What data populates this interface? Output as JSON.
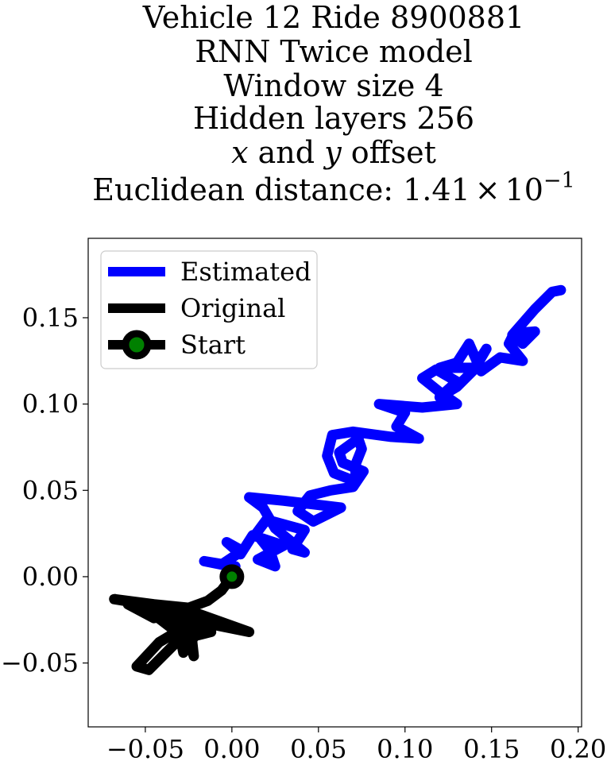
{
  "chart_data": {
    "type": "line",
    "title_lines": [
      "Vehicle 12 Ride 8900881",
      "RNN Twice model",
      "Window size 4",
      "Hidden layers 256"
    ],
    "subtitle_offset": {
      "x_var": "x",
      "and_text": " and ",
      "y_var": "y",
      "offset_text": " offset"
    },
    "distance_line": {
      "prefix": "Euclidean distance: ",
      "mantissa": "1.41",
      "times": "×",
      "base": "10",
      "exponent": "−1"
    },
    "xlim": [
      -0.083,
      0.202
    ],
    "ylim": [
      -0.087,
      0.196
    ],
    "xticks": [
      -0.05,
      0.0,
      0.05,
      0.1,
      0.15,
      0.2
    ],
    "xtick_labels": [
      "−0.05",
      "0.00",
      "0.05",
      "0.10",
      "0.15",
      "0.20"
    ],
    "yticks": [
      -0.05,
      0.0,
      0.05,
      0.1,
      0.15
    ],
    "ytick_labels": [
      "−0.05",
      "0.00",
      "0.05",
      "0.10",
      "0.15"
    ],
    "legend": {
      "position": "upper-left",
      "entries": [
        "Estimated",
        "Original",
        "Start"
      ]
    },
    "series": [
      {
        "name": "Estimated",
        "color": "#0000ff",
        "points": [
          [
            0,
            0
          ],
          [
            0.002,
            0.006
          ],
          [
            -0.016,
            0.009
          ],
          [
            -0.006,
            0.007
          ],
          [
            0.006,
            0.015
          ],
          [
            -0.003,
            0.02
          ],
          [
            0.005,
            0.013
          ],
          [
            0.012,
            0.024
          ],
          [
            0.03,
            0.018
          ],
          [
            0.015,
            0.01
          ],
          [
            0.025,
            0.006
          ],
          [
            0.022,
            0.015
          ],
          [
            0.014,
            0.025
          ],
          [
            0.02,
            0.033
          ],
          [
            0.042,
            0.027
          ],
          [
            0.035,
            0.016
          ],
          [
            0.042,
            0.014
          ],
          [
            0.025,
            0.028
          ],
          [
            0.018,
            0.04
          ],
          [
            0.01,
            0.046
          ],
          [
            0.03,
            0.044
          ],
          [
            0.063,
            0.04
          ],
          [
            0.047,
            0.032
          ],
          [
            0.038,
            0.038
          ],
          [
            0.045,
            0.047
          ],
          [
            0.057,
            0.05
          ],
          [
            0.07,
            0.052
          ],
          [
            0.076,
            0.061
          ],
          [
            0.064,
            0.066
          ],
          [
            0.062,
            0.072
          ],
          [
            0.073,
            0.08
          ],
          [
            0.075,
            0.074
          ],
          [
            0.071,
            0.064
          ],
          [
            0.072,
            0.055
          ],
          [
            0.059,
            0.06
          ],
          [
            0.055,
            0.07
          ],
          [
            0.058,
            0.082
          ],
          [
            0.07,
            0.084
          ],
          [
            0.092,
            0.081
          ],
          [
            0.108,
            0.08
          ],
          [
            0.095,
            0.087
          ],
          [
            0.1,
            0.095
          ],
          [
            0.085,
            0.1
          ],
          [
            0.11,
            0.098
          ],
          [
            0.13,
            0.1
          ],
          [
            0.12,
            0.107
          ],
          [
            0.11,
            0.115
          ],
          [
            0.118,
            0.12
          ],
          [
            0.13,
            0.113
          ],
          [
            0.12,
            0.104
          ],
          [
            0.13,
            0.11
          ],
          [
            0.14,
            0.12
          ],
          [
            0.147,
            0.132
          ],
          [
            0.14,
            0.121
          ],
          [
            0.12,
            0.121
          ],
          [
            0.13,
            0.124
          ],
          [
            0.137,
            0.135
          ],
          [
            0.144,
            0.119
          ],
          [
            0.155,
            0.127
          ],
          [
            0.168,
            0.125
          ],
          [
            0.16,
            0.135
          ],
          [
            0.163,
            0.141
          ],
          [
            0.175,
            0.142
          ],
          [
            0.168,
            0.135
          ],
          [
            0.162,
            0.14
          ],
          [
            0.175,
            0.155
          ],
          [
            0.185,
            0.165
          ],
          [
            0.19,
            0.166
          ]
        ]
      },
      {
        "name": "Original",
        "color": "#000000",
        "points": [
          [
            0,
            0
          ],
          [
            -0.006,
            -0.008
          ],
          [
            -0.014,
            -0.014
          ],
          [
            -0.025,
            -0.018
          ],
          [
            -0.045,
            -0.016
          ],
          [
            -0.068,
            -0.013
          ],
          [
            -0.05,
            -0.016
          ],
          [
            -0.03,
            -0.02
          ],
          [
            -0.045,
            -0.024
          ],
          [
            -0.06,
            -0.016
          ],
          [
            -0.045,
            -0.022
          ],
          [
            -0.032,
            -0.032
          ],
          [
            -0.042,
            -0.038
          ],
          [
            -0.055,
            -0.052
          ],
          [
            -0.048,
            -0.054
          ],
          [
            -0.04,
            -0.046
          ],
          [
            -0.032,
            -0.038
          ],
          [
            -0.024,
            -0.02
          ],
          [
            -0.036,
            -0.028
          ],
          [
            -0.02,
            -0.034
          ],
          [
            -0.012,
            -0.032
          ],
          [
            -0.022,
            -0.03
          ],
          [
            -0.038,
            -0.024
          ],
          [
            -0.025,
            -0.036
          ],
          [
            -0.022,
            -0.046
          ],
          [
            -0.024,
            -0.028
          ],
          [
            -0.01,
            -0.028
          ],
          [
            0.01,
            -0.032
          ],
          [
            -0.018,
            -0.022
          ],
          [
            -0.035,
            -0.018
          ],
          [
            -0.015,
            -0.025
          ],
          [
            -0.028,
            -0.044
          ],
          [
            -0.03,
            -0.034
          ],
          [
            -0.035,
            -0.026
          ],
          [
            -0.045,
            -0.02
          ]
        ]
      }
    ],
    "start_point": {
      "name": "Start",
      "x": 0,
      "y": 0,
      "face": "#008000",
      "edge": "#000000"
    }
  }
}
